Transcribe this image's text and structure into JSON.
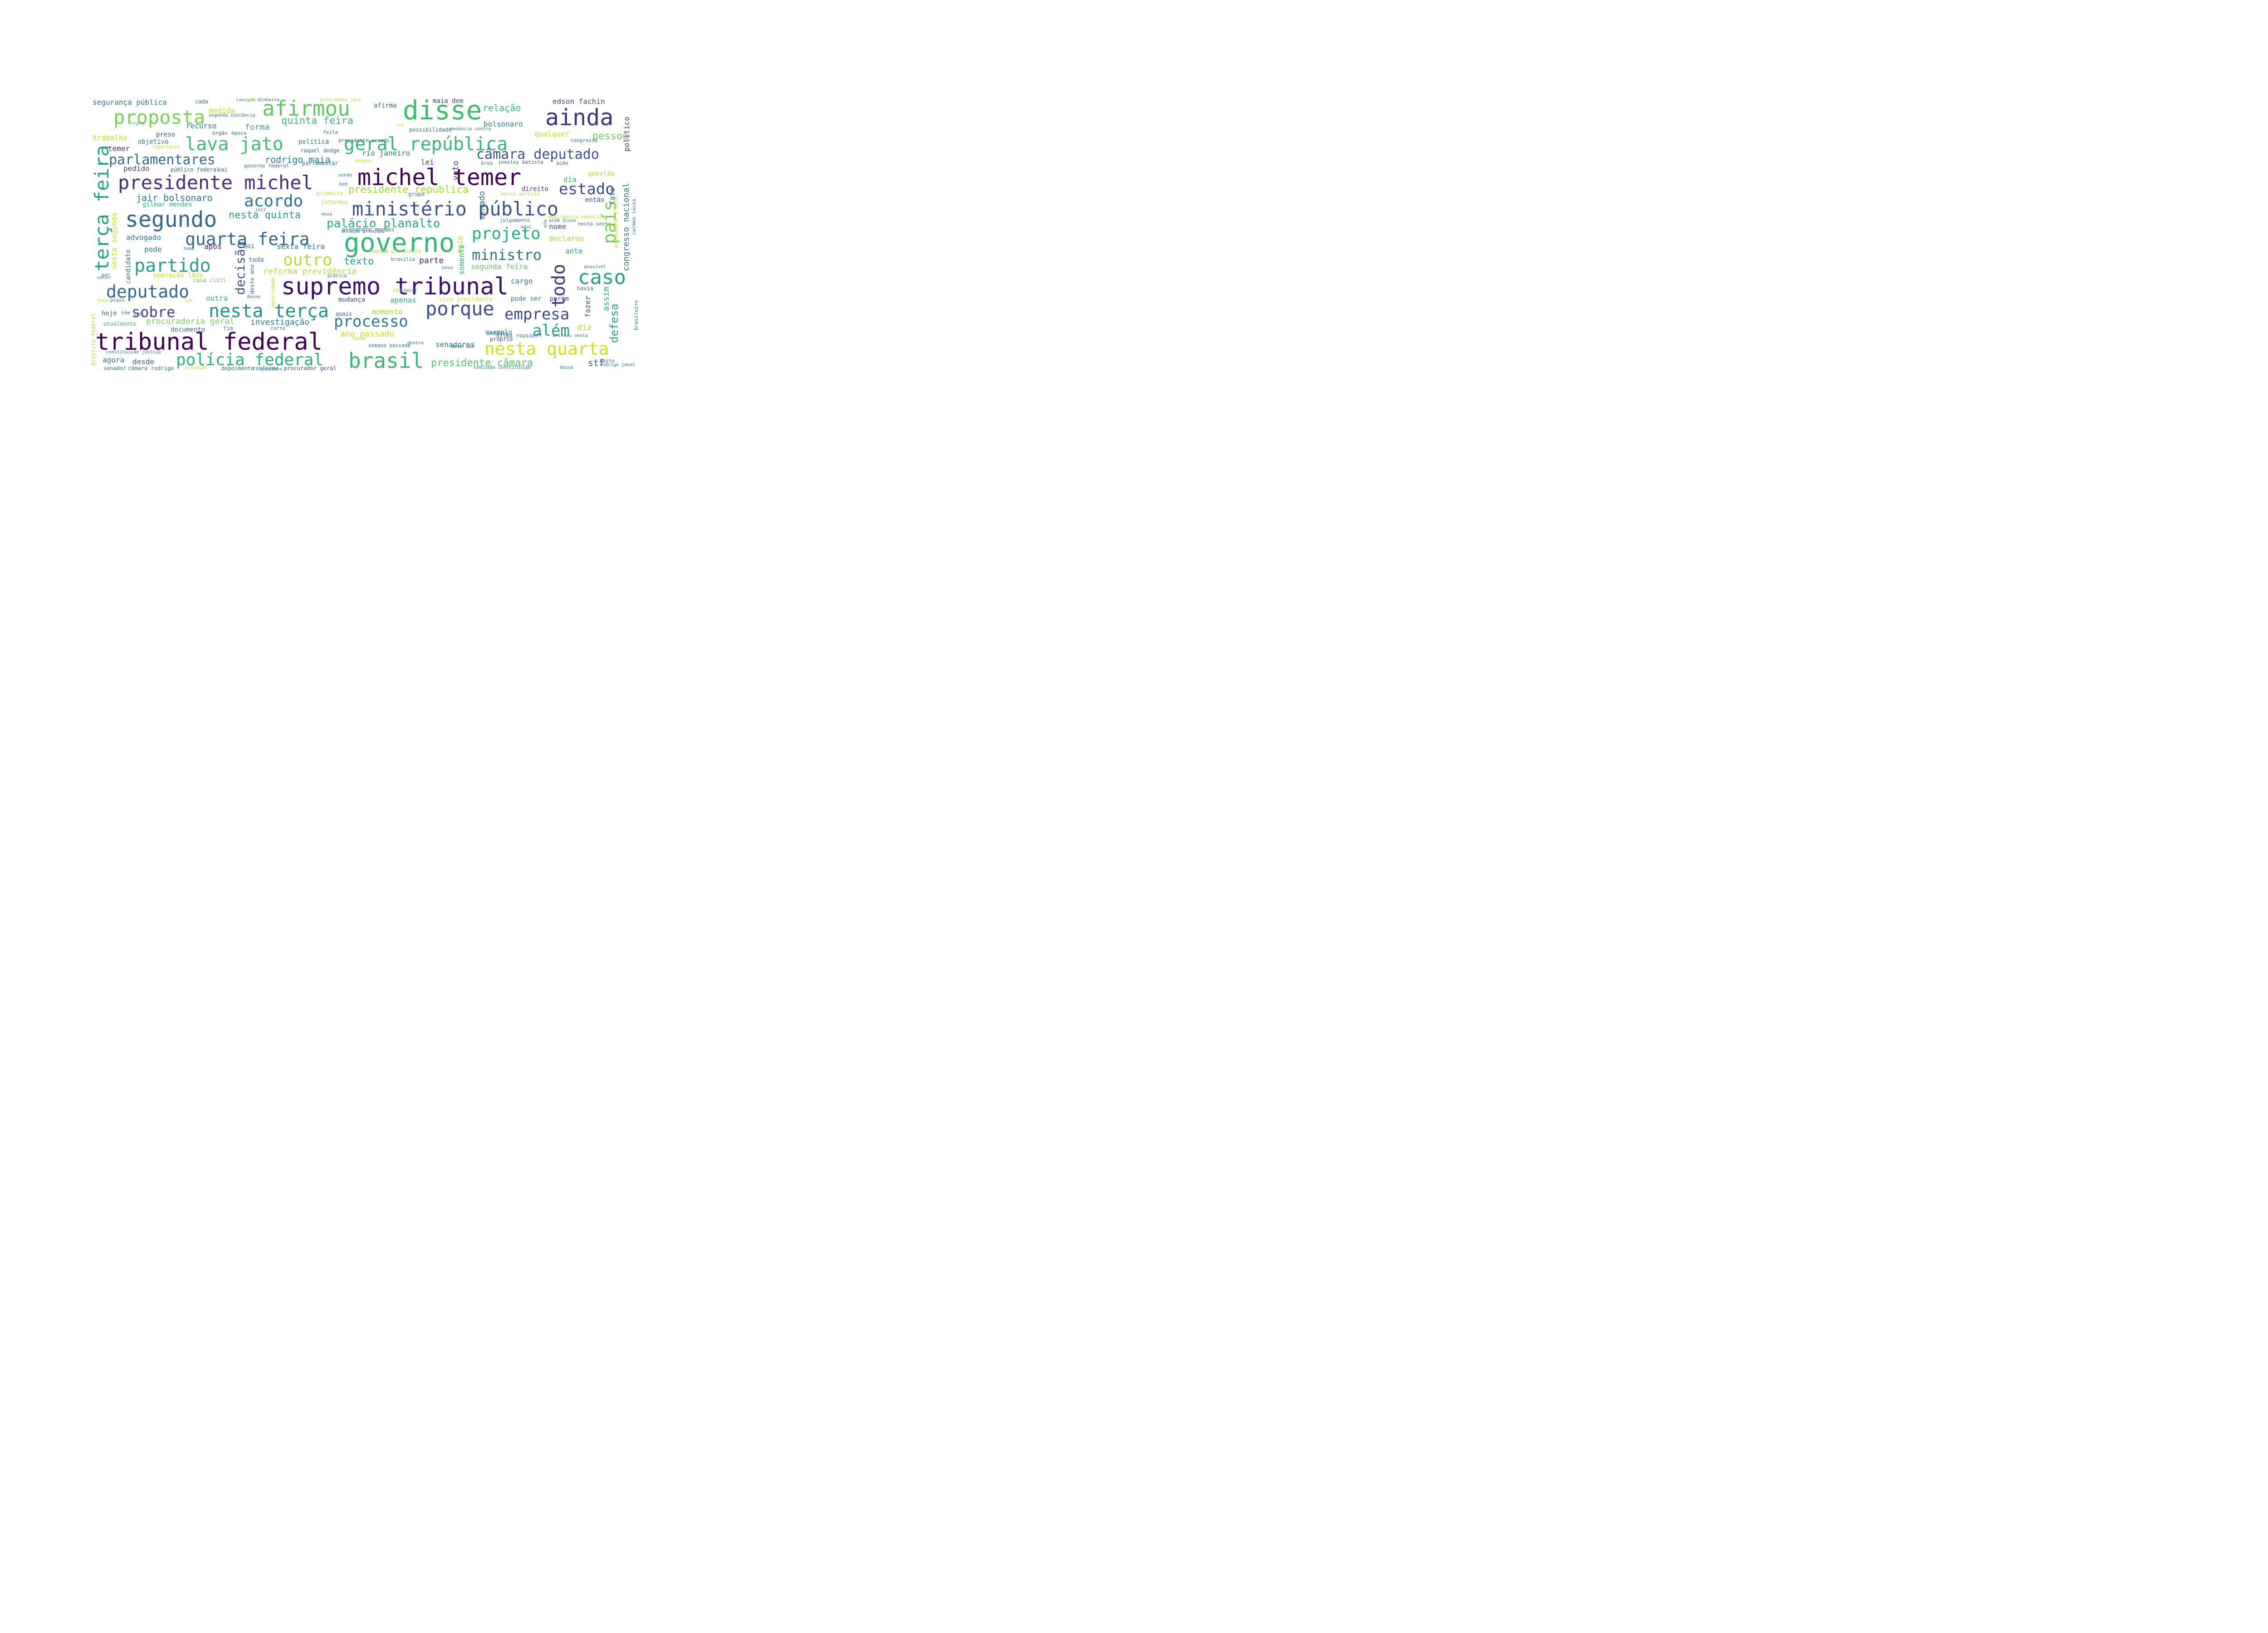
{
  "words": [
    {
      "t": "michel temer",
      "c": "#440154"
    },
    {
      "t": "supremo tribunal",
      "c": "#3b0f70"
    },
    {
      "t": "tribunal federal",
      "c": "#440154"
    },
    {
      "t": "governo",
      "c": "#35b779"
    },
    {
      "t": "disse",
      "c": "#3fbc73"
    },
    {
      "t": "segundo",
      "c": "#31688e"
    },
    {
      "t": "ainda",
      "c": "#46327e"
    },
    {
      "t": "afirmou",
      "c": "#5ec962"
    },
    {
      "t": "caso",
      "c": "#20a486"
    },
    {
      "t": "brasil",
      "c": "#3aba76"
    },
    {
      "t": "presidente michel",
      "c": "#472d7b"
    },
    {
      "t": "ministério público",
      "c": "#3b528b"
    },
    {
      "t": "geral república",
      "c": "#35b779"
    },
    {
      "t": "nesta terça",
      "c": "#21918c"
    },
    {
      "t": "quarta feira",
      "c": "#31688e"
    },
    {
      "t": "partido",
      "c": "#2a9d8f"
    },
    {
      "t": "nesta quarta",
      "c": "#d0e11c"
    },
    {
      "t": "lava jato",
      "c": "#3fbc73"
    },
    {
      "t": "porque",
      "c": "#3e4a89"
    },
    {
      "t": "polícia federal",
      "c": "#2ab07f"
    },
    {
      "t": "proposta",
      "c": "#7ad151"
    },
    {
      "t": "deputado",
      "c": "#31688e"
    },
    {
      "t": "acordo",
      "c": "#2c728e"
    },
    {
      "t": "processo",
      "c": "#2a788e"
    },
    {
      "t": "empresa",
      "c": "#3e4989"
    },
    {
      "t": "outro",
      "c": "#b5de2b"
    },
    {
      "t": "projeto",
      "c": "#26ad81"
    },
    {
      "t": "estado",
      "c": "#3e4989"
    },
    {
      "t": "câmara deputado",
      "c": "#3b528b"
    },
    {
      "t": "parlamentares",
      "c": "#31688e"
    },
    {
      "t": "ministro",
      "c": "#2c728e"
    },
    {
      "t": "sobre",
      "c": "#433e85"
    },
    {
      "t": "além",
      "c": "#1f9e89"
    },
    {
      "t": "palácio planalto",
      "c": "#22a884"
    },
    {
      "t": "presidente câmara",
      "c": "#52c569"
    },
    {
      "t": "presidente república",
      "c": "#a5db36"
    },
    {
      "t": "quinta feira",
      "c": "#37b878"
    },
    {
      "t": "rodrigo maia",
      "c": "#2a788e"
    },
    {
      "t": "jair bolsonaro",
      "c": "#2c728e"
    },
    {
      "t": "nesta quinta",
      "c": "#1fa187"
    },
    {
      "t": "texto",
      "c": "#22a884"
    },
    {
      "t": "relação",
      "c": "#3fbc73"
    },
    {
      "t": "reforma previdência",
      "c": "#b5de2b"
    },
    {
      "t": "ano passado",
      "c": "#c8e020"
    },
    {
      "t": "procuradoria geral",
      "c": "#7ad151"
    },
    {
      "t": "investigação",
      "c": "#277f8e"
    },
    {
      "t": "segunda feira",
      "c": "#5ec962"
    },
    {
      "t": "momento",
      "c": "#9fda3a"
    },
    {
      "t": "apenas",
      "c": "#27ad81"
    },
    {
      "t": "forma",
      "c": "#2db27d"
    },
    {
      "t": "medida",
      "c": "#c2df23"
    },
    {
      "t": "recurso",
      "c": "#2c728e"
    },
    {
      "t": "bolsonaro",
      "c": "#2a788e"
    },
    {
      "t": "qualquer",
      "c": "#c2df23"
    },
    {
      "t": "pessoa",
      "c": "#6ece58"
    },
    {
      "t": "edson fachin",
      "c": "#414487"
    },
    {
      "t": "maia dem",
      "c": "#433e85"
    },
    {
      "t": "segurança pública",
      "c": "#2a788e"
    },
    {
      "t": "trabalho",
      "c": "#bddf26"
    },
    {
      "t": "objetivo",
      "c": "#2a788e"
    },
    {
      "t": "temer",
      "c": "#46327e"
    },
    {
      "t": "preso",
      "c": "#3b528b"
    },
    {
      "t": "pedido",
      "c": "#433e85"
    },
    {
      "t": "rio janeiro",
      "c": "#2c728e"
    },
    {
      "t": "lei",
      "c": "#443983"
    },
    {
      "t": "política",
      "c": "#2c728e"
    },
    {
      "t": "afirma",
      "c": "#2c728e"
    },
    {
      "t": "cada",
      "c": "#2a788e"
    },
    {
      "t": "gilmar mendes",
      "c": "#35b779"
    },
    {
      "t": "advogado",
      "c": "#2a788e"
    },
    {
      "t": "pode",
      "c": "#2a788e"
    },
    {
      "t": "após",
      "c": "#481a6c"
    },
    {
      "t": "doi",
      "c": "#31688e"
    },
    {
      "t": "sexta feira",
      "c": "#2a788e"
    },
    {
      "t": "toda",
      "c": "#2a788e"
    },
    {
      "t": "parte",
      "c": "#481a6c"
    },
    {
      "t": "nome",
      "c": "#3b528b"
    },
    {
      "t": "declarou",
      "c": "#a5db36"
    },
    {
      "t": "ante",
      "c": "#22a884"
    },
    {
      "t": "dia",
      "c": "#37b878"
    },
    {
      "t": "direito",
      "c": "#443983"
    },
    {
      "t": "então",
      "c": "#3b528b"
    },
    {
      "t": "questão",
      "c": "#b5de2b"
    },
    {
      "t": "cargo",
      "c": "#2c728e"
    },
    {
      "t": "outra",
      "c": "#35b779"
    },
    {
      "t": "mudança",
      "c": "#3b528b"
    },
    {
      "t": "pode ser",
      "c": "#2a788e"
    },
    {
      "t": "porém",
      "c": "#433e85"
    },
    {
      "t": "havia",
      "c": "#2a788e"
    },
    {
      "t": "operação lava",
      "c": "#c8e020"
    },
    {
      "t": "casa civil",
      "c": "#5ec962"
    },
    {
      "t": "hoje",
      "c": "#2c728e"
    },
    {
      "t": "agora",
      "c": "#2c728e"
    },
    {
      "t": "desde",
      "c": "#31688e"
    },
    {
      "t": "documento",
      "c": "#2c728e"
    },
    {
      "t": "quais",
      "c": "#3b528b"
    },
    {
      "t": "diz",
      "c": "#b5de2b"
    },
    {
      "t": "senadores",
      "c": "#2c728e"
    },
    {
      "t": "exemplo",
      "c": "#2c728e"
    },
    {
      "t": "stf",
      "c": "#3b528b"
    },
    {
      "t": "atualmente",
      "c": "#3fbc73"
    },
    {
      "t": "fim",
      "c": "#22a884"
    },
    {
      "t": "tem",
      "c": "#2c728e"
    },
    {
      "t": "depoimento",
      "c": "#31688e"
    },
    {
      "t": "conforme",
      "c": "#2a788e"
    },
    {
      "t": "procurador geral",
      "c": "#3b528b"
    },
    {
      "t": "senador",
      "c": "#2c728e"
    },
    {
      "t": "câmara rodrigo",
      "c": "#2c728e"
    },
    {
      "t": "dilma rousseff",
      "c": "#2c728e"
    },
    {
      "t": "próprio",
      "c": "#433e85"
    },
    {
      "t": "entanto",
      "c": "#2a788e"
    },
    {
      "t": "semana passada",
      "c": "#2c728e"
    },
    {
      "t": "deve ser",
      "c": "#2c728e"
    },
    {
      "t": "vice presidente",
      "c": "#d8e219"
    },
    {
      "t": "feito",
      "c": "#3b528b"
    },
    {
      "t": "vai",
      "c": "#3b528b"
    },
    {
      "t": "parlamentar",
      "c": "#2c728e"
    },
    {
      "t": "governo federal",
      "c": "#2c728e"
    },
    {
      "t": "público federal",
      "c": "#2c728e"
    },
    {
      "t": "raquel dodge",
      "c": "#2c728e"
    },
    {
      "t": "julgamento",
      "c": "#2c728e"
    },
    {
      "t": "alexandre moraes",
      "c": "#2c728e"
    },
    {
      "t": "informou",
      "c": "#b5de2b"
    },
    {
      "t": "primeiro",
      "c": "#c8e020"
    },
    {
      "t": "grupo",
      "c": "#2c728e"
    },
    {
      "t": "marco aurélio",
      "c": "#b5de2b"
    },
    {
      "t": "joesley batista",
      "c": "#3b528b"
    },
    {
      "t": "ação",
      "c": "#2c728e"
    },
    {
      "t": "área",
      "c": "#2c728e"
    },
    {
      "t": "congresso",
      "c": "#2c728e"
    },
    {
      "t": "possibilidade",
      "c": "#2c728e"
    },
    {
      "t": "presidente senado",
      "c": "#2c728e"
    },
    {
      "t": "feita",
      "c": "#2c728e"
    },
    {
      "t": "época",
      "c": "#2c728e"
    },
    {
      "t": "órgão",
      "c": "#2c728e"
    },
    {
      "t": "regra",
      "c": "#5ec962"
    },
    {
      "t": "importante",
      "c": "#b5de2b"
    },
    {
      "t": "segunda instância",
      "c": "#2c728e"
    },
    {
      "t": "lavagem dinheiro",
      "c": "#2c728e"
    },
    {
      "t": "presidente jair",
      "c": "#b5de2b"
    },
    {
      "t": "denúncia contra",
      "c": "#2c728e"
    },
    {
      "t": "sempre",
      "c": "#b5de2b"
    },
    {
      "t": "sendo",
      "c": "#2c728e"
    },
    {
      "t": "bem",
      "c": "#2c728e"
    },
    {
      "t": "juiz",
      "c": "#2c728e"
    },
    {
      "t": "nova",
      "c": "#2c728e"
    },
    {
      "t": "delação premiada",
      "c": "#2c728e"
    },
    {
      "t": "medida provisória",
      "c": "#b5de2b"
    },
    {
      "t": "brasília",
      "c": "#2c728e"
    },
    {
      "t": "tema",
      "c": "#2c728e"
    },
    {
      "t": "pgr",
      "c": "#2c728e"
    },
    {
      "t": "valor",
      "c": "#2c728e"
    },
    {
      "t": "prática",
      "c": "#2c728e"
    },
    {
      "t": "maior",
      "c": "#2c728e"
    },
    {
      "t": "novo",
      "c": "#2c728e"
    },
    {
      "t": "possível",
      "c": "#2c728e"
    },
    {
      "t": "nesta sexta",
      "c": "#2c728e"
    },
    {
      "t": "aqui",
      "c": "#2c728e"
    },
    {
      "t": "além disso",
      "c": "#2c728e"
    },
    {
      "t": "presidência república",
      "c": "#b5de2b"
    },
    {
      "t": "corte",
      "c": "#2c728e"
    },
    {
      "t": "razão",
      "c": "#b5de2b"
    },
    {
      "t": "tempo",
      "c": "#b5de2b"
    },
    {
      "t": "sim",
      "c": "#b5de2b"
    },
    {
      "t": "têm",
      "c": "#2c728e"
    },
    {
      "t": "prazo",
      "c": "#2c728e"
    },
    {
      "t": "vez",
      "c": "#b5de2b"
    },
    {
      "t": "desse",
      "c": "#2c728e"
    },
    {
      "t": "dentro",
      "c": "#2c728e"
    },
    {
      "t": "afirmou nesta",
      "c": "#2c728e"
    },
    {
      "t": "constituição justiça",
      "c": "#2c728e"
    },
    {
      "t": "situação",
      "c": "#b5de2b"
    },
    {
      "t": "comissão constituição",
      "c": "#2c728e"
    },
    {
      "t": "dessa",
      "c": "#2c728e"
    },
    {
      "t": "rodrigo janot",
      "c": "#2c728e"
    },
    {
      "t": "encontro",
      "c": "#2c728e"
    },
    {
      "t": "onde",
      "c": "#b5de2b"
    },
    {
      "t": "fez",
      "c": "#b5de2b"
    },
    {
      "t": "terça feira",
      "c": "#20a486"
    },
    {
      "t": "país",
      "c": "#7ad151"
    },
    {
      "t": "todo",
      "c": "#46327e"
    },
    {
      "t": "senado",
      "c": "#2c728e"
    },
    {
      "t": "voto",
      "c": "#443983"
    },
    {
      "t": "decisão",
      "c": "#3b528b"
    },
    {
      "t": "congresso nacional",
      "c": "#2c728e"
    },
    {
      "t": "político",
      "c": "#472d7b"
    },
    {
      "t": "defesa",
      "c": "#20a486"
    },
    {
      "t": "fazer",
      "c": "#3b528b"
    },
    {
      "t": "assim",
      "c": "#2ab07f"
    },
    {
      "t": "fato",
      "c": "#2c728e"
    },
    {
      "t": "nesta segunda",
      "c": "#c2df23"
    },
    {
      "t": "candidato",
      "c": "#2c728e"
    },
    {
      "t": "meio",
      "c": "#b5de2b"
    },
    {
      "t": "somente",
      "c": "#2ab07f"
    },
    {
      "t": "deste ano",
      "c": "#2c728e"
    },
    {
      "t": "autoridade",
      "c": "#b5de2b"
    },
    {
      "t": "presidente eleito",
      "c": "#b5de2b"
    },
    {
      "t": "carmen lúcia",
      "c": "#2c728e"
    },
    {
      "t": "brasileiro",
      "c": "#2c728e"
    },
    {
      "t": "distrito federal",
      "c": "#b5de2b"
    },
    {
      "t": "ato",
      "c": "#2c728e"
    }
  ]
}
